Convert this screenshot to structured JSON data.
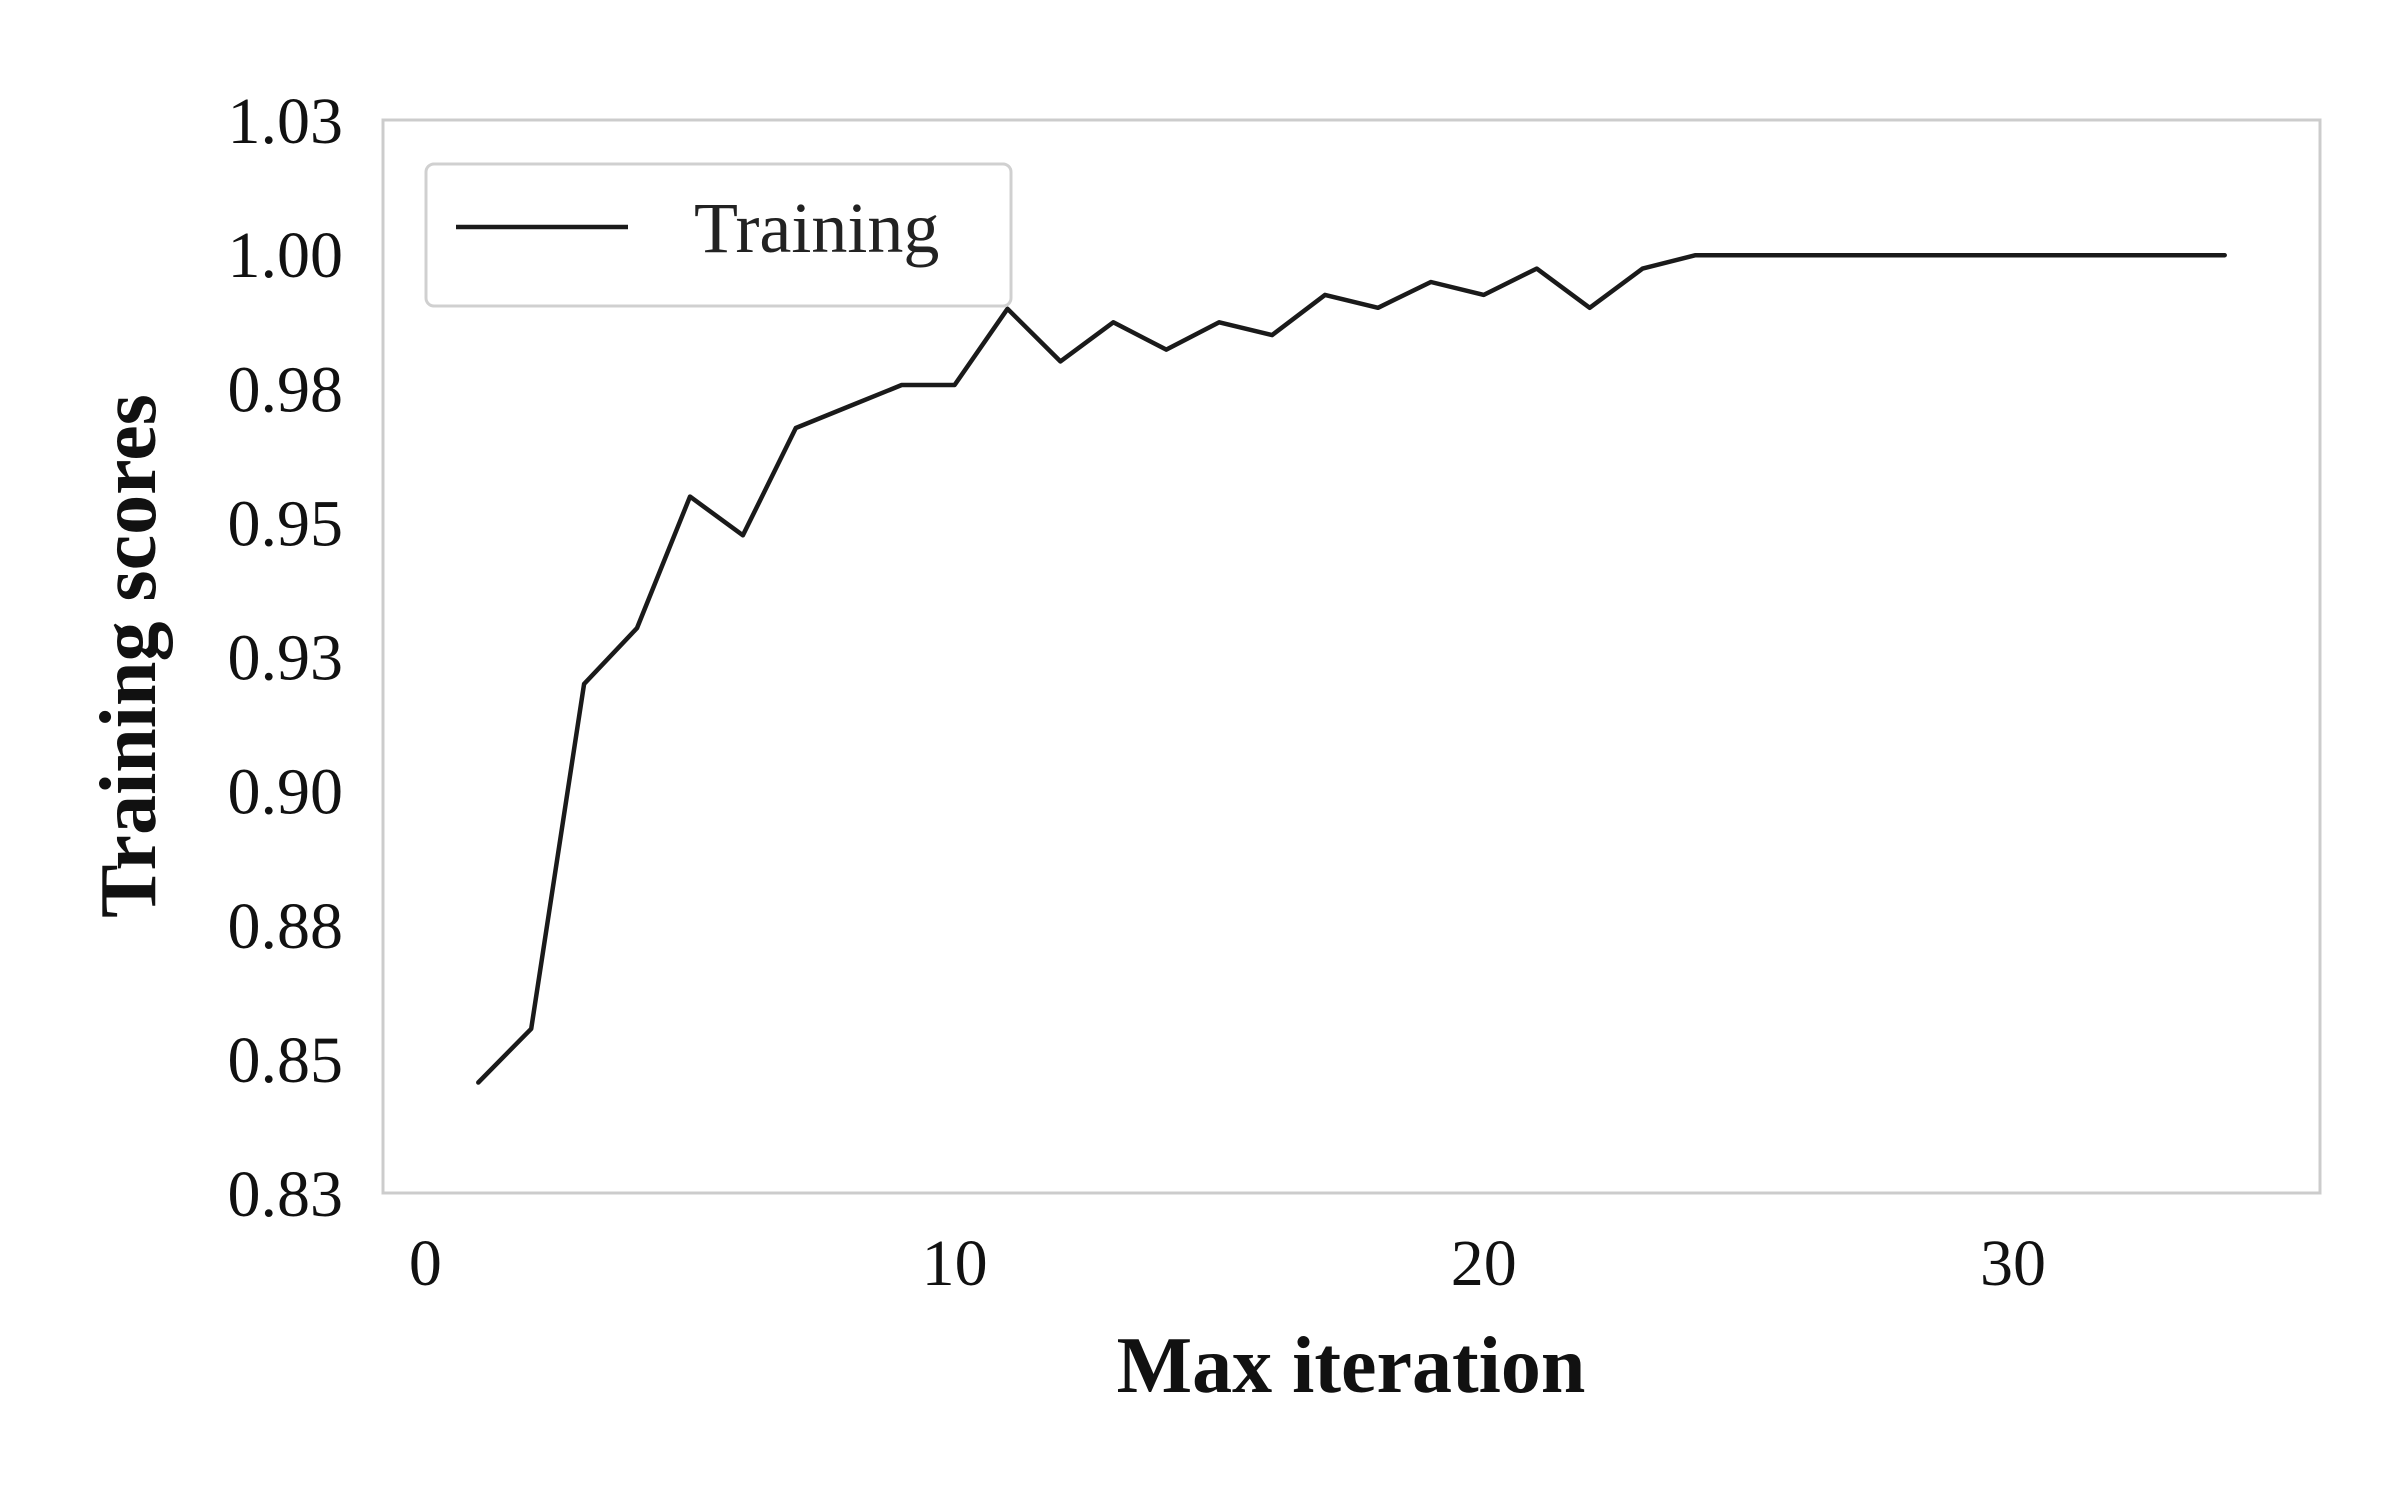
{
  "chart_data": {
    "type": "line",
    "title": "",
    "xlabel": "Max iteration",
    "ylabel": "Training scores",
    "xlim": [
      -0.8,
      35.8
    ],
    "ylim": [
      0.825,
      1.025
    ],
    "x_ticks": [
      0,
      10,
      20,
      30
    ],
    "y_ticks": [
      0.825,
      0.85,
      0.875,
      0.9,
      0.925,
      0.95,
      0.975,
      1.0,
      1.025
    ],
    "x_tick_labels": [
      "0",
      "10",
      "20",
      "30"
    ],
    "y_tick_labels": [
      "0.83",
      "0.85",
      "0.88",
      "0.90",
      "0.93",
      "0.95",
      "0.98",
      "1.00",
      "1.03"
    ],
    "grid": false,
    "legend_position": "top-left",
    "series": [
      {
        "name": "Training",
        "color": "#1a1a1a",
        "x": [
          1,
          2,
          3,
          4,
          5,
          6,
          7,
          8,
          9,
          10,
          11,
          12,
          13,
          14,
          15,
          16,
          17,
          18,
          19,
          20,
          21,
          22,
          23,
          24,
          25,
          26,
          27,
          28,
          29,
          30,
          31,
          32,
          33,
          34
        ],
        "y": [
          0.8456,
          0.8556,
          0.9199,
          0.9303,
          0.9548,
          0.9476,
          0.9676,
          0.9716,
          0.9756,
          0.9756,
          0.9898,
          0.98,
          0.9873,
          0.9822,
          0.9873,
          0.9849,
          0.9924,
          0.99,
          0.9948,
          0.9924,
          0.9973,
          0.99,
          0.9973,
          0.9998,
          0.9998,
          0.9998,
          0.9998,
          0.9998,
          0.9998,
          0.9998,
          0.9998,
          0.9998,
          0.9998,
          0.9998
        ]
      }
    ]
  },
  "colors": {
    "frame": "#cccccc",
    "text": "#111111",
    "legend_border": "#d0d0d0"
  }
}
